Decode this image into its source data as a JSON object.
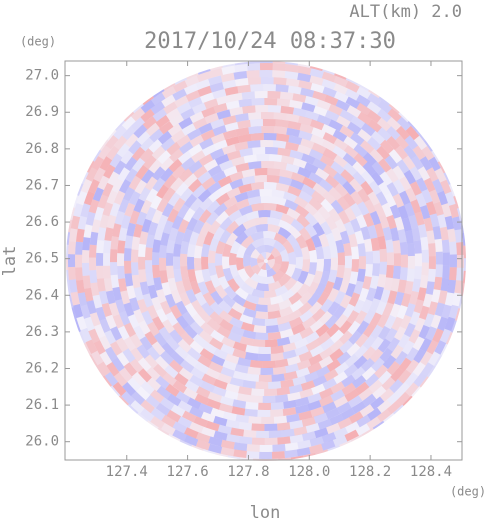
{
  "chart_data": {
    "type": "radar-image",
    "title": "2017/10/24 08:37:30",
    "annotation": "ALT(km) 2.0",
    "y_unit": "(deg)",
    "x_unit": "(deg)",
    "xlabel": "lon",
    "ylabel": "lat",
    "xlim": [
      127.197,
      128.502
    ],
    "ylim": [
      25.95,
      27.04
    ],
    "xticks": [
      127.4,
      127.6,
      127.8,
      {
        "value": 128.0,
        "label": "128.0"
      },
      128.2,
      128.4
    ],
    "yticks": [
      {
        "value": 26.0,
        "label": "26.0"
      },
      26.1,
      26.2,
      26.3,
      26.4,
      26.5,
      26.6,
      26.7,
      26.8,
      26.9,
      {
        "value": 27.0,
        "label": "27.0"
      }
    ]
  }
}
